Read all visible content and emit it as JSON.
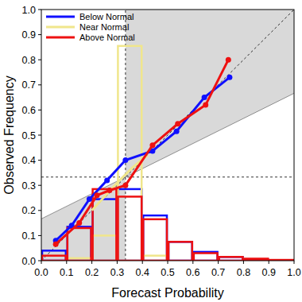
{
  "chart_data": {
    "type": "reliability",
    "x_label": "Forecast Probability",
    "y_label": "Observed Frequency",
    "xlim": [
      0,
      1
    ],
    "ylim": [
      0,
      1
    ],
    "xticks": [
      {
        "value": 0,
        "label": "0.0"
      },
      0.1,
      0.2,
      0.3,
      0.4,
      0.5,
      0.6,
      0.7,
      0.8,
      0.9,
      {
        "value": 1,
        "label": "1.0"
      }
    ],
    "yticks": [
      {
        "value": 0,
        "label": "0.0"
      },
      0.1,
      0.2,
      0.3,
      0.4,
      0.5,
      0.6,
      0.7,
      0.8,
      0.9,
      {
        "value": 1,
        "label": "1.0"
      }
    ],
    "legend": "upper left",
    "climatology": 0.333,
    "bins": [
      0,
      0.1,
      0.2,
      0.3,
      0.4,
      0.5,
      0.6,
      0.7,
      0.8,
      0.9,
      1
    ],
    "series": [
      {
        "name": "Below Normal",
        "color": "#1010ff",
        "marker": "circle",
        "x": [
          0.057,
          0.12,
          0.19,
          0.26,
          0.333,
          0.44,
          0.535,
          0.645,
          0.745
        ],
        "values": [
          0.08,
          0.14,
          0.245,
          0.32,
          0.4,
          0.437,
          0.515,
          0.65,
          0.73
        ],
        "counts": [
          0.04,
          0.135,
          0.245,
          0.285,
          0.18,
          0.075,
          0.035,
          0.015,
          0.005,
          0.002
        ]
      },
      {
        "name": "Near Normal",
        "color": "#f0e68c",
        "marker": "none",
        "x": [
          0.2,
          0.3,
          0.36,
          0.42
        ],
        "values": [
          0.2,
          0.31,
          0.37,
          0.42
        ],
        "counts": [
          0,
          0.01,
          0.1,
          0.855,
          0.02,
          0,
          0,
          0,
          0,
          0
        ]
      },
      {
        "name": "Above Normal",
        "color": "#ee1111",
        "marker": "circle",
        "x": [
          0.057,
          0.15,
          0.22,
          0.27,
          0.333,
          0.44,
          0.54,
          0.65,
          0.74
        ],
        "values": [
          0.066,
          0.15,
          0.26,
          0.28,
          0.3,
          0.46,
          0.545,
          0.62,
          0.8
        ],
        "counts": [
          0.02,
          0.13,
          0.285,
          0.255,
          0.165,
          0.075,
          0.03,
          0.015,
          0.008,
          0.003
        ]
      }
    ]
  }
}
